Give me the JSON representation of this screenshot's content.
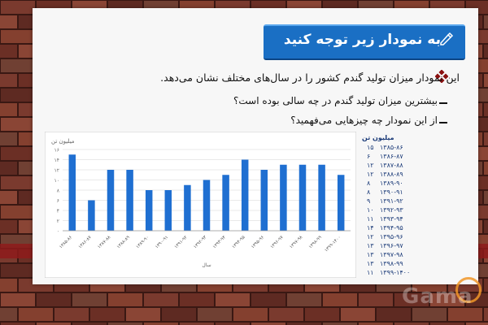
{
  "slide": {
    "title": "به نمودار زیر توجه کنید",
    "line1": "این نمودار میزان تولید گندم کشور را در سال‌های مختلف نشان می‌دهد.",
    "line2": "بیشترین میزان تولید گندم در چه سالی بوده است؟",
    "line3": "از این نمودار چه چیزهایی می‌فهمید؟"
  },
  "chart_data": {
    "type": "bar",
    "title": "میلیون تن",
    "xlabel": "سال",
    "ylabel": "",
    "ylim": [
      0,
      16
    ],
    "y_ticks": [
      "۰",
      "۲",
      "۴",
      "۶",
      "۸",
      "۱۰",
      "۱۲",
      "۱۴",
      "۱۶"
    ],
    "categories": [
      "۱۳۸۵-۸۶",
      "۱۳۸۶-۸۷",
      "۱۳۸۷-۸۸",
      "۱۳۸۸-۸۹",
      "۱۳۸۹-۹۰",
      "۱۳۹۰-۹۱",
      "۱۳۹۱-۹۲",
      "۱۳۹۲-۹۳",
      "۱۳۹۳-۹۴",
      "۱۳۹۴-۹۵",
      "۱۳۹۵-۹۶",
      "۱۳۹۶-۹۷",
      "۱۳۹۷-۹۸",
      "۱۳۹۸-۹۹",
      "۱۳۹۹-۱۴۰۰"
    ],
    "values": [
      15,
      6,
      12,
      12,
      8,
      8,
      9,
      10,
      11,
      14,
      12,
      13,
      13,
      13,
      11
    ],
    "bar_color": "#1f6fd1"
  },
  "table": {
    "header": "میلیون تن",
    "rows": [
      {
        "year": "۱۳۸۵-۸۶",
        "value": "۱۵"
      },
      {
        "year": "۱۳۸۶-۸۷",
        "value": "۶"
      },
      {
        "year": "۱۳۸۷-۸۸",
        "value": "۱۲"
      },
      {
        "year": "۱۳۸۸-۸۹",
        "value": "۱۲"
      },
      {
        "year": "۱۳۸۹-۹۰",
        "value": "۸"
      },
      {
        "year": "۱۳۹۰-۹۱",
        "value": "۸"
      },
      {
        "year": "۱۳۹۱-۹۲",
        "value": "۹"
      },
      {
        "year": "۱۳۹۲-۹۳",
        "value": "۱۰"
      },
      {
        "year": "۱۳۹۳-۹۴",
        "value": "۱۱"
      },
      {
        "year": "۱۳۹۴-۹۵",
        "value": "۱۴"
      },
      {
        "year": "۱۳۹۵-۹۶",
        "value": "۱۲"
      },
      {
        "year": "۱۳۹۶-۹۷",
        "value": "۱۳"
      },
      {
        "year": "۱۳۹۷-۹۸",
        "value": "۱۳"
      },
      {
        "year": "۱۳۹۸-۹۹",
        "value": "۱۳"
      },
      {
        "year": "۱۳۹۹-۱۴۰۰",
        "value": "۱۱"
      }
    ]
  },
  "watermark": "Gama",
  "colors": {
    "title_bar": "#1a6fc4",
    "bullet": "#8b1010",
    "brick": "#5a2a22"
  },
  "icons": {
    "title": "pencil-icon",
    "bullet": "diamond-bullet-icon"
  }
}
